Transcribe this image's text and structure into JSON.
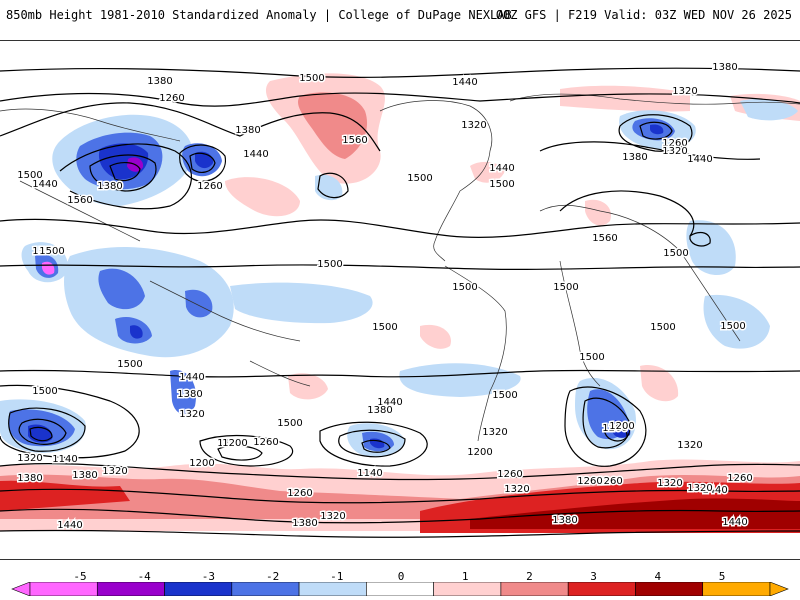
{
  "header": {
    "title_left": "850mb Height 1981-2010 Standardized Anomaly | College of DuPage NEXLAB",
    "title_right": "00Z GFS | F219 Valid: 03Z WED NOV 26 2025"
  },
  "colorbar": {
    "ticks": [
      "-5",
      "-4",
      "-3",
      "-2",
      "-1",
      "0",
      "1",
      "2",
      "3",
      "4",
      "5"
    ],
    "colors": [
      "#ff66ff",
      "#9900cc",
      "#1a33cc",
      "#4d73e6",
      "#bfdcf8",
      "#ffffff",
      "#ffd0d0",
      "#f08a8a",
      "#dd2222",
      "#a00000",
      "#ffaa00"
    ]
  },
  "contour_labels": [
    "1380",
    "1260",
    "1380",
    "1440",
    "1500",
    "1560",
    "1500",
    "1260",
    "1440",
    "1380",
    "1500",
    "1560",
    "1440",
    "1320",
    "1500",
    "1440",
    "1500",
    "1380",
    "1320",
    "1260",
    "1320",
    "1440",
    "1560",
    "1380",
    "1500",
    "1500",
    "1500",
    "1500",
    "1500",
    "1500",
    "1500",
    "1500",
    "1500",
    "1500",
    "1500",
    "1440",
    "1380",
    "1320",
    "1500",
    "1440",
    "1380",
    "1500",
    "1320",
    "1200",
    "1140",
    "1260",
    "1200",
    "1260",
    "1200",
    "1140",
    "1320",
    "1260",
    "1200",
    "1320",
    "1200",
    "1260",
    "1320",
    "1380",
    "1260",
    "1320",
    "1380",
    "1440",
    "1320",
    "1260",
    "1320",
    "1380",
    "1320",
    "1440",
    "1260",
    "1380",
    "1440"
  ]
}
